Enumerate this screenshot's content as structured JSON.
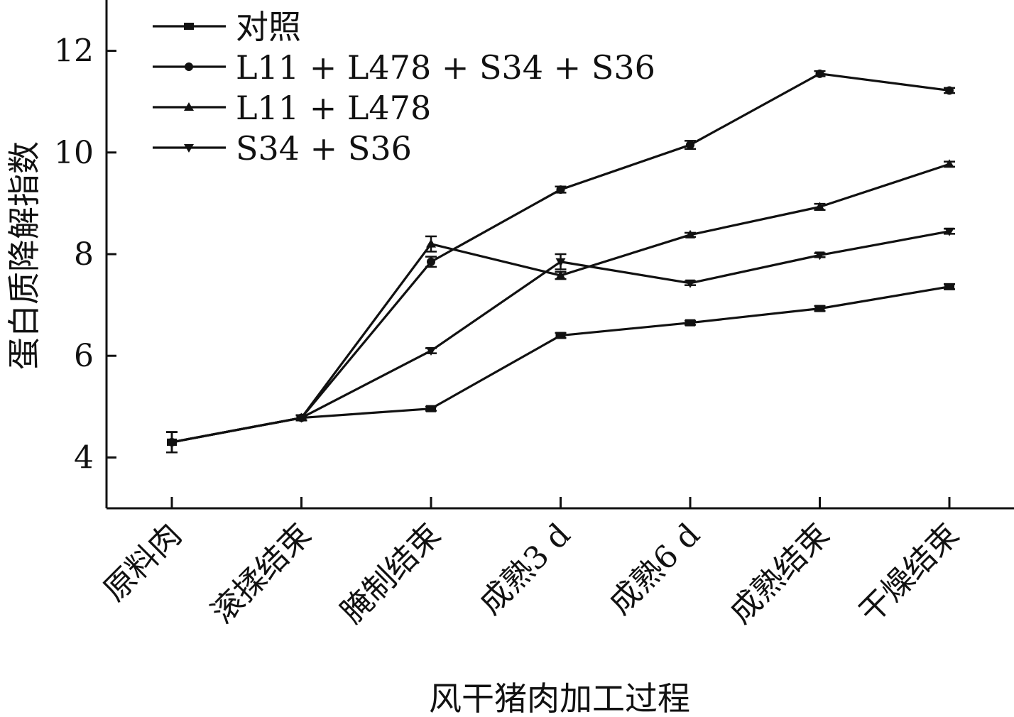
{
  "chart_data": {
    "type": "line",
    "title": "",
    "xlabel": "风干猪肉加工过程",
    "ylabel": "蛋白质降解指数",
    "ylim": [
      3,
      13
    ],
    "yticks": [
      4,
      6,
      8,
      10,
      12
    ],
    "ytick_labels": [
      "4",
      "6",
      "8",
      "10",
      "12"
    ],
    "categories": [
      "原料肉",
      "滚揉结束",
      "腌制结束",
      "成熟3 d",
      "成熟6 d",
      "成熟结束",
      "干燥结束"
    ],
    "grid": false,
    "legend_position": "top-left",
    "error_bars": true,
    "series": [
      {
        "name": "对照",
        "marker": "square",
        "values": [
          4.3,
          4.78,
          4.96,
          6.4,
          6.65,
          6.93,
          7.36
        ],
        "errors": [
          0.2,
          0.05,
          0.04,
          0.05,
          0.04,
          0.05,
          0.05
        ]
      },
      {
        "name": "L11 + L478 + S34 + S36",
        "marker": "circle",
        "values": [
          4.3,
          4.78,
          7.85,
          9.27,
          10.15,
          11.55,
          11.22
        ],
        "errors": [
          0.2,
          0.05,
          0.1,
          0.06,
          0.08,
          0.05,
          0.05
        ]
      },
      {
        "name": "L11 + L478",
        "marker": "triangle-up",
        "values": [
          4.3,
          4.78,
          8.2,
          7.58,
          8.38,
          8.93,
          9.77
        ],
        "errors": [
          0.2,
          0.05,
          0.15,
          0.07,
          0.04,
          0.06,
          0.05
        ]
      },
      {
        "name": "S34 + S36",
        "marker": "triangle-down",
        "values": [
          4.3,
          4.78,
          6.1,
          7.85,
          7.43,
          7.98,
          8.45
        ],
        "errors": [
          0.2,
          0.05,
          0.05,
          0.15,
          0.04,
          0.04,
          0.05
        ]
      }
    ]
  }
}
